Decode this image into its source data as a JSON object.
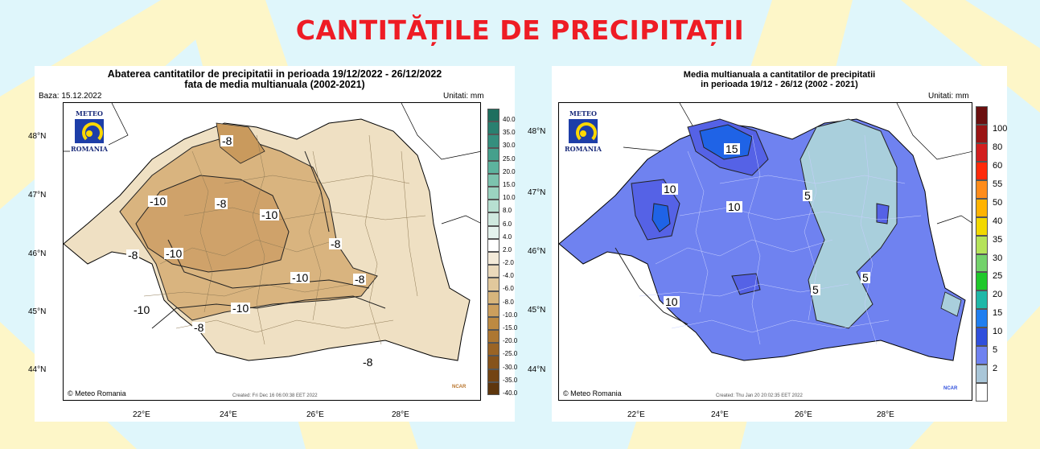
{
  "page_title": "CANTITĂȚILE DE PRECIPITAȚII",
  "left_map": {
    "title_line1": "Abaterea cantitatilor de precipitatii in perioada 19/12/2022 - 26/12/2022",
    "title_line2": "fata de media multianuala (2002-2021)",
    "baza": "Baza: 15.12.2022",
    "units": "Unitati: mm",
    "logo_top": "METEO",
    "logo_bottom": "ROMANIA",
    "lat_labels": [
      "48°N",
      "47°N",
      "46°N",
      "45°N",
      "44°N"
    ],
    "lon_labels": [
      "22°E",
      "24°E",
      "26°E",
      "28°E"
    ],
    "colorbar_labels": [
      "40.0",
      "35.0",
      "30.0",
      "25.0",
      "20.0",
      "15.0",
      "10.0",
      "8.0",
      "6.0",
      "4.0",
      "2.0",
      "-2.0",
      "-4.0",
      "-6.0",
      "-8.0",
      "-10.0",
      "-15.0",
      "-20.0",
      "-25.0",
      "-30.0",
      "-35.0",
      "-40.0"
    ],
    "colorbar_colors": [
      "#1f6f5f",
      "#2a8070",
      "#358f7e",
      "#45a08c",
      "#5db39e",
      "#7cc3ae",
      "#9bd3c0",
      "#b7e0d1",
      "#cfe9df",
      "#e4f2ed",
      "#ffffff",
      "#f3ead9",
      "#ead9bb",
      "#e1c89c",
      "#d7b57c",
      "#cc9f5d",
      "#bd8a42",
      "#ad7732",
      "#9a6425",
      "#86531b",
      "#734413",
      "#5e360d"
    ],
    "contour_labels": [
      "-8",
      "-10",
      "-8",
      "-10",
      "-8",
      "-8",
      "-10",
      "-10",
      "-8",
      "-10",
      "-10",
      "-8",
      "-8"
    ],
    "copyright": "© Meteo Romania",
    "created": "Created: Fri Dec 16 06:00:38 EET 2022",
    "ncar": "NCAR"
  },
  "right_map": {
    "title_line1": "Media multianuala a cantitatilor de precipitatii",
    "title_line2": "in perioada 19/12 - 26/12 (2002 - 2021)",
    "units": "Unitati: mm",
    "logo_top": "METEO",
    "logo_bottom": "ROMANIA",
    "lat_labels": [
      "48°N",
      "47°N",
      "46°N",
      "45°N",
      "44°N"
    ],
    "lon_labels": [
      "22°E",
      "24°E",
      "26°E",
      "28°E"
    ],
    "colorbar_labels": [
      "100",
      "80",
      "60",
      "55",
      "50",
      "40",
      "35",
      "30",
      "25",
      "20",
      "15",
      "10",
      "5",
      "2"
    ],
    "colorbar_colors": [
      "#6b0f0f",
      "#9a1414",
      "#d21e1e",
      "#ff2a0a",
      "#ff8c1a",
      "#ffb300",
      "#f2d800",
      "#b5e35a",
      "#73d26b",
      "#1ec82a",
      "#1fb8a8",
      "#1f7ef0",
      "#2f4fdc",
      "#6f82f0",
      "#a9c6d8",
      "#ffffff"
    ],
    "contour_labels": [
      "15",
      "10",
      "10",
      "5",
      "10",
      "5",
      "5"
    ],
    "copyright": "© Meteo Romania",
    "created": "Created: Thu Jan 20 20:02:35 EET 2022",
    "ncar": "NCAR"
  }
}
